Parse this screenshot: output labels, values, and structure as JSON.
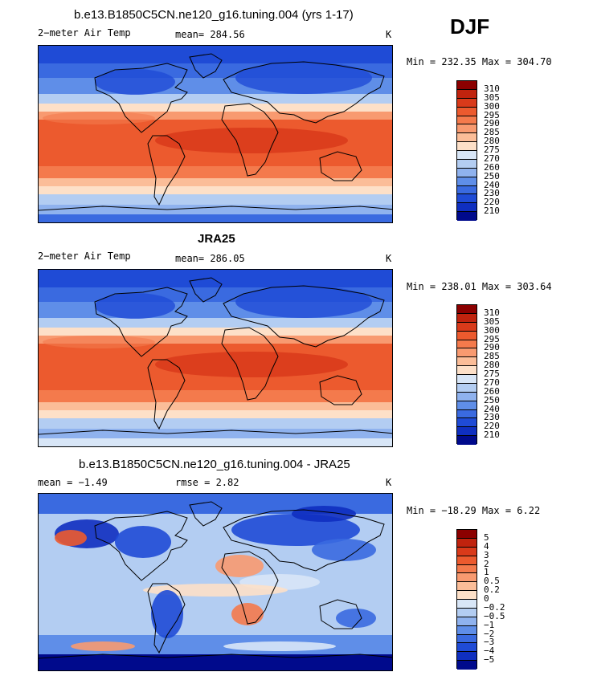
{
  "season": "DJF",
  "units": "K",
  "panels": [
    {
      "title": "b.e13.B1850C5CN.ne120_g16.tuning.004 (yrs 1-17)",
      "left_label": "2−meter Air Temp",
      "center_label": "mean= 284.56",
      "right_label": "K",
      "minmax": "Min = 232.35 Max = 304.70",
      "kind": "abs"
    },
    {
      "title": "JRA25",
      "left_label": "2−meter Air Temp",
      "center_label": "mean= 286.05",
      "right_label": "K",
      "minmax": "Min = 238.01 Max = 303.64",
      "kind": "abs"
    },
    {
      "title": "b.e13.B1850C5CN.ne120_g16.tuning.004 - JRA25",
      "left_label": "mean =   −1.49",
      "center_label": "rmse =    2.82",
      "right_label": "K",
      "minmax": "Min = −18.29 Max =    6.22",
      "kind": "diff"
    }
  ],
  "colorbar_abs": {
    "labels": [
      "310",
      "305",
      "300",
      "295",
      "290",
      "285",
      "280",
      "275",
      "270",
      "260",
      "250",
      "240",
      "230",
      "220",
      "210"
    ],
    "colors": [
      "#8b0000",
      "#c0230e",
      "#d93a1a",
      "#ec5a2e",
      "#f47a4c",
      "#f89a70",
      "#fbbd98",
      "#fde0c8",
      "#d8e6f7",
      "#b3cdf2",
      "#8fb2ee",
      "#5f8ee8",
      "#3a6ae0",
      "#1f4bd6",
      "#0f2fc0",
      "#000a8c"
    ]
  },
  "colorbar_diff": {
    "labels": [
      "5",
      "4",
      "3",
      "2",
      "1",
      "0.5",
      "0.2",
      "0",
      "−0.2",
      "−0.5",
      "−1",
      "−2",
      "−3",
      "−4",
      "−5"
    ],
    "colors": [
      "#8b0000",
      "#c0230e",
      "#d93a1a",
      "#ec5a2e",
      "#f47a4c",
      "#f89a70",
      "#fbbd98",
      "#fde0c8",
      "#d8e6f7",
      "#b3cdf2",
      "#8fb2ee",
      "#5f8ee8",
      "#3a6ae0",
      "#1f4bd6",
      "#0f2fc0",
      "#000a8c"
    ]
  }
}
